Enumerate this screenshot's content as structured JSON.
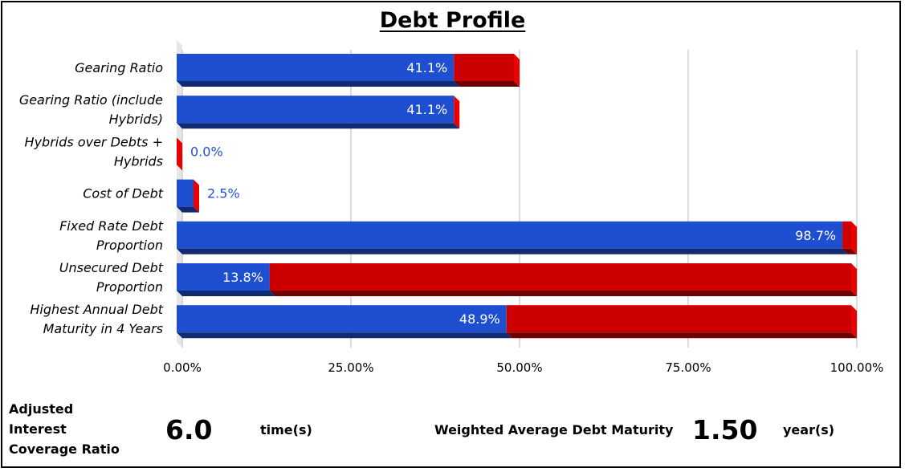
{
  "title": "Debt Profile",
  "chart_data": {
    "type": "bar",
    "orientation": "horizontal",
    "stacked": true,
    "categories": [
      "Gearing Ratio",
      "Gearing Ratio (include Hybrids)",
      "Hybrids over Debts + Hybrids",
      "Cost of Debt",
      "Fixed Rate Debt Proportion",
      "Unsecured Debt Proportion",
      "Highest Annual Debt Maturity in 4 Years"
    ],
    "series": [
      {
        "color": "#1f4fd1",
        "values": [
          41.1,
          41.1,
          0.0,
          2.5,
          98.7,
          13.8,
          48.9
        ]
      },
      {
        "color": "#cc0000",
        "values": [
          8.9,
          0.0,
          0.0,
          0.0,
          1.3,
          86.2,
          51.1
        ]
      }
    ],
    "data_labels": [
      "41.1%",
      "41.1%",
      "0.0%",
      "2.5%",
      "98.7%",
      "13.8%",
      "48.9%"
    ],
    "xlim": [
      0,
      100
    ],
    "x_ticks": [
      0,
      25,
      50,
      75,
      100
    ],
    "x_tick_labels": [
      "0.00%",
      "25.00%",
      "50.00%",
      "75.00%",
      "100.00%"
    ],
    "grid": true,
    "legend": "none"
  },
  "metrics": {
    "icr_label": "Adjusted Interest Coverage Ratio",
    "icr_value": "6.0",
    "icr_unit": "time(s)",
    "wadm_label": "Weighted Average Debt Maturity",
    "wadm_value": "1.50",
    "wadm_unit": "year(s)"
  }
}
